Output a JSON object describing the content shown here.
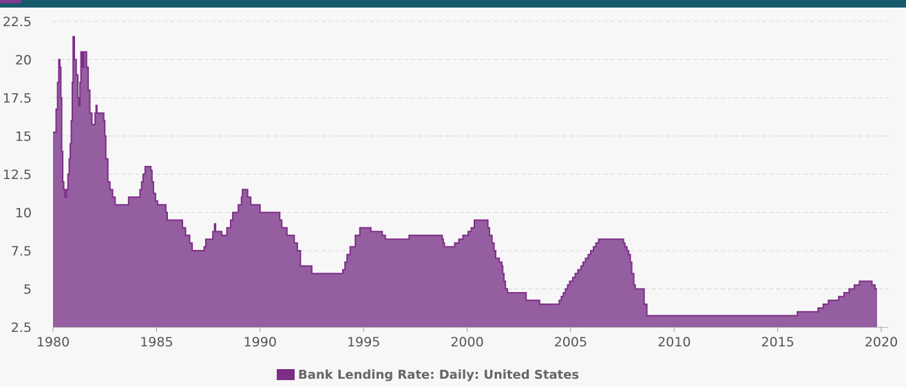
{
  "colors": {
    "series": "#7d2e87",
    "area": "#955ea0",
    "header": "#175a6e",
    "grid": "#d6d6d6"
  },
  "legend": {
    "label": "Bank Lending Rate: Daily: United States"
  },
  "chart_data": {
    "type": "area",
    "title": "",
    "xlabel": "",
    "ylabel": "",
    "xlim": [
      1980,
      2020
    ],
    "ylim": [
      2.5,
      22.5
    ],
    "x_ticks": [
      1980,
      1985,
      1990,
      1995,
      2000,
      2005,
      2010,
      2015,
      2020
    ],
    "y_ticks": [
      2.5,
      5,
      7.5,
      10,
      12.5,
      15,
      17.5,
      20,
      22.5
    ],
    "y_tick_labels": [
      "2.5",
      "5",
      "7.5",
      "10",
      "12.5",
      "15",
      "17.5",
      "20",
      "22.5"
    ],
    "grid": true,
    "legend_position": "bottom-center",
    "series": [
      {
        "name": "Bank Lending Rate: Daily: United States",
        "step": true,
        "points": [
          [
            1980.0,
            15.25
          ],
          [
            1980.15,
            16.75
          ],
          [
            1980.22,
            18.5
          ],
          [
            1980.28,
            20.0
          ],
          [
            1980.33,
            19.5
          ],
          [
            1980.38,
            17.5
          ],
          [
            1980.42,
            14.0
          ],
          [
            1980.47,
            12.0
          ],
          [
            1980.52,
            11.5
          ],
          [
            1980.58,
            11.0
          ],
          [
            1980.65,
            11.5
          ],
          [
            1980.72,
            12.5
          ],
          [
            1980.78,
            13.5
          ],
          [
            1980.83,
            14.5
          ],
          [
            1980.88,
            16.0
          ],
          [
            1980.93,
            18.5
          ],
          [
            1980.97,
            21.5
          ],
          [
            1981.03,
            20.0
          ],
          [
            1981.12,
            19.0
          ],
          [
            1981.2,
            17.5
          ],
          [
            1981.25,
            17.0
          ],
          [
            1981.3,
            18.5
          ],
          [
            1981.35,
            20.5
          ],
          [
            1981.42,
            19.5
          ],
          [
            1981.48,
            20.5
          ],
          [
            1981.62,
            19.5
          ],
          [
            1981.7,
            18.0
          ],
          [
            1981.78,
            16.5
          ],
          [
            1981.88,
            15.75
          ],
          [
            1982.03,
            16.5
          ],
          [
            1982.08,
            17.0
          ],
          [
            1982.12,
            16.5
          ],
          [
            1982.45,
            16.0
          ],
          [
            1982.5,
            15.0
          ],
          [
            1982.55,
            13.5
          ],
          [
            1982.65,
            12.0
          ],
          [
            1982.75,
            11.5
          ],
          [
            1982.88,
            11.0
          ],
          [
            1983.0,
            10.5
          ],
          [
            1983.65,
            11.0
          ],
          [
            1984.2,
            11.5
          ],
          [
            1984.28,
            12.0
          ],
          [
            1984.35,
            12.5
          ],
          [
            1984.45,
            13.0
          ],
          [
            1984.72,
            12.75
          ],
          [
            1984.78,
            12.0
          ],
          [
            1984.85,
            11.25
          ],
          [
            1984.95,
            10.75
          ],
          [
            1985.05,
            10.5
          ],
          [
            1985.45,
            10.0
          ],
          [
            1985.52,
            9.5
          ],
          [
            1986.25,
            9.0
          ],
          [
            1986.4,
            8.5
          ],
          [
            1986.6,
            8.0
          ],
          [
            1986.72,
            7.5
          ],
          [
            1987.3,
            7.75
          ],
          [
            1987.38,
            8.25
          ],
          [
            1987.72,
            8.75
          ],
          [
            1987.8,
            9.25
          ],
          [
            1987.85,
            8.75
          ],
          [
            1988.15,
            8.5
          ],
          [
            1988.4,
            9.0
          ],
          [
            1988.58,
            9.5
          ],
          [
            1988.68,
            10.0
          ],
          [
            1988.95,
            10.5
          ],
          [
            1989.1,
            11.0
          ],
          [
            1989.15,
            11.5
          ],
          [
            1989.4,
            11.0
          ],
          [
            1989.55,
            10.5
          ],
          [
            1990.0,
            10.0
          ],
          [
            1990.95,
            9.5
          ],
          [
            1991.05,
            9.0
          ],
          [
            1991.3,
            8.5
          ],
          [
            1991.65,
            8.0
          ],
          [
            1991.8,
            7.5
          ],
          [
            1991.95,
            6.5
          ],
          [
            1992.5,
            6.0
          ],
          [
            1994.0,
            6.25
          ],
          [
            1994.1,
            6.75
          ],
          [
            1994.2,
            7.25
          ],
          [
            1994.35,
            7.75
          ],
          [
            1994.6,
            8.5
          ],
          [
            1994.82,
            9.0
          ],
          [
            1995.35,
            8.75
          ],
          [
            1995.9,
            8.5
          ],
          [
            1996.05,
            8.25
          ],
          [
            1997.2,
            8.5
          ],
          [
            1998.8,
            8.25
          ],
          [
            1998.85,
            8.0
          ],
          [
            1998.9,
            7.75
          ],
          [
            1999.4,
            8.0
          ],
          [
            1999.6,
            8.25
          ],
          [
            1999.8,
            8.5
          ],
          [
            2000.05,
            8.75
          ],
          [
            2000.2,
            9.0
          ],
          [
            2000.35,
            9.5
          ],
          [
            2001.0,
            9.0
          ],
          [
            2001.08,
            8.5
          ],
          [
            2001.2,
            8.0
          ],
          [
            2001.3,
            7.5
          ],
          [
            2001.38,
            7.0
          ],
          [
            2001.55,
            6.75
          ],
          [
            2001.68,
            6.5
          ],
          [
            2001.72,
            6.0
          ],
          [
            2001.78,
            5.5
          ],
          [
            2001.85,
            5.0
          ],
          [
            2001.95,
            4.75
          ],
          [
            2002.85,
            4.25
          ],
          [
            2003.5,
            4.0
          ],
          [
            2004.45,
            4.25
          ],
          [
            2004.55,
            4.5
          ],
          [
            2004.65,
            4.75
          ],
          [
            2004.75,
            5.0
          ],
          [
            2004.85,
            5.25
          ],
          [
            2004.95,
            5.5
          ],
          [
            2005.1,
            5.75
          ],
          [
            2005.22,
            6.0
          ],
          [
            2005.35,
            6.25
          ],
          [
            2005.5,
            6.5
          ],
          [
            2005.6,
            6.75
          ],
          [
            2005.72,
            7.0
          ],
          [
            2005.85,
            7.25
          ],
          [
            2005.97,
            7.5
          ],
          [
            2006.1,
            7.75
          ],
          [
            2006.22,
            8.0
          ],
          [
            2006.35,
            8.25
          ],
          [
            2007.55,
            8.0
          ],
          [
            2007.62,
            7.75
          ],
          [
            2007.72,
            7.5
          ],
          [
            2007.8,
            7.25
          ],
          [
            2007.88,
            6.75
          ],
          [
            2007.95,
            6.0
          ],
          [
            2008.05,
            5.25
          ],
          [
            2008.12,
            5.0
          ],
          [
            2008.55,
            4.0
          ],
          [
            2008.68,
            3.25
          ],
          [
            2015.95,
            3.5
          ],
          [
            2016.95,
            3.75
          ],
          [
            2017.2,
            4.0
          ],
          [
            2017.45,
            4.25
          ],
          [
            2017.95,
            4.5
          ],
          [
            2018.2,
            4.75
          ],
          [
            2018.45,
            5.0
          ],
          [
            2018.7,
            5.25
          ],
          [
            2018.95,
            5.5
          ],
          [
            2019.55,
            5.25
          ],
          [
            2019.7,
            5.0
          ],
          [
            2019.8,
            5.0
          ]
        ]
      }
    ]
  }
}
